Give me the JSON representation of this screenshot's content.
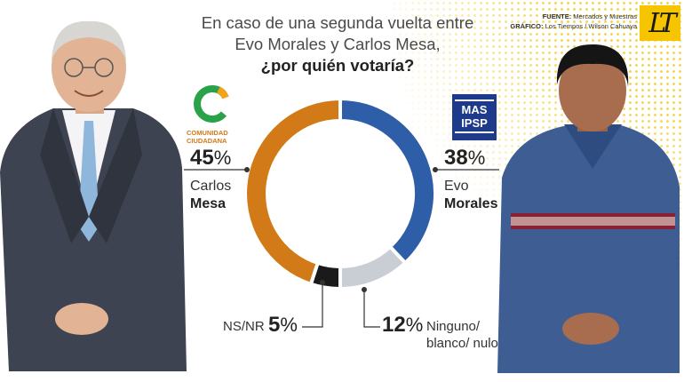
{
  "header": {
    "title_line1": "En caso de una segunda vuelta entre",
    "title_line2": "Evo Morales y Carlos Mesa,",
    "question": "¿por quién votaría?"
  },
  "source": {
    "fuente_label": "FUENTE:",
    "fuente_value": "Mercados y Muestras",
    "grafico_label": "GRÁFICO:",
    "grafico_value": "Los Tiempos / Wilson Cahuaya"
  },
  "brand_logo": "LT",
  "parties": {
    "cc": {
      "line1": "COMUNIDAD",
      "line2": "CIUDADANA"
    },
    "mas": {
      "line1": "MAS",
      "line2": "IPSP"
    }
  },
  "labels": {
    "mesa": {
      "pct": "45",
      "first": "Carlos",
      "last": "Mesa"
    },
    "evo": {
      "pct": "38",
      "first": "Evo",
      "last": "Morales"
    },
    "ns": {
      "text": "NS/NR",
      "pct": "5"
    },
    "ninguno": {
      "pct": "12",
      "line1": "Ninguno/",
      "line2": "blanco/ nulo"
    },
    "percent_sign": "%"
  },
  "chart_data": {
    "type": "pie",
    "title": "¿por quién votaría?",
    "slices": [
      {
        "label": "Evo Morales",
        "value": 38,
        "color": "#2f5ea8"
      },
      {
        "label": "Ninguno/ blanco/ nulo",
        "value": 12,
        "color": "#c9ced4"
      },
      {
        "label": "NS/NR",
        "value": 5,
        "color": "#1a1a1a"
      },
      {
        "label": "Carlos Mesa",
        "value": 45,
        "color": "#d17a17"
      }
    ]
  }
}
